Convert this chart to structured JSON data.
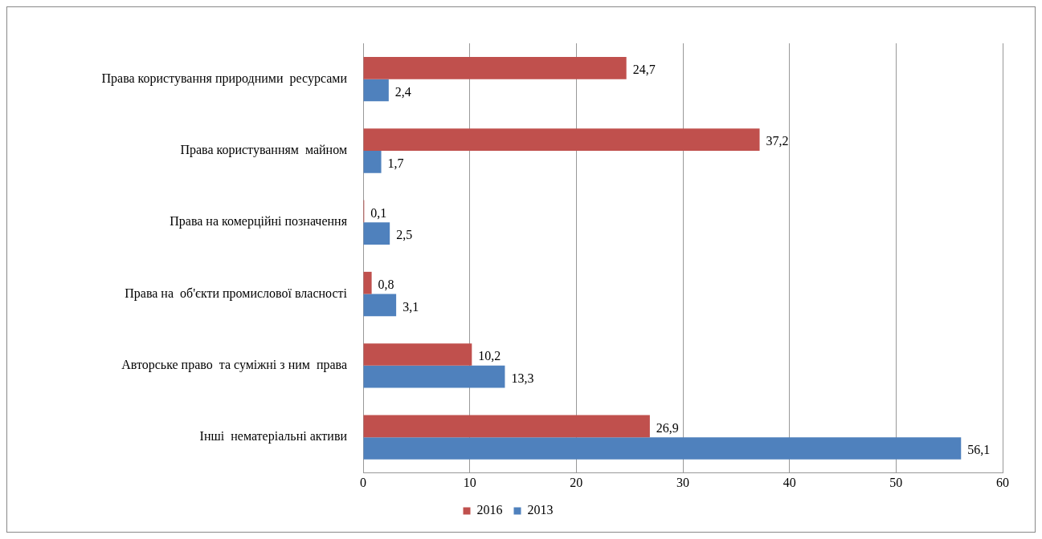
{
  "chart_data": {
    "type": "bar",
    "orientation": "horizontal",
    "categories": [
      "Права користування природними  ресурсами",
      "Права користуванням  майном",
      "Права на комерційні позначення",
      "Права на  об'єкти промислової власності",
      "Авторське право  та суміжні з ним  права",
      "Інші  нематеріальні активи"
    ],
    "series": [
      {
        "name": "2016",
        "color": "#c0504d",
        "values": [
          24.7,
          37.2,
          0.1,
          0.8,
          10.2,
          26.9
        ],
        "value_labels": [
          "24,7",
          "37,2",
          "0,1",
          "0,8",
          "10,2",
          "26,9"
        ]
      },
      {
        "name": "2013",
        "color": "#4f81bd",
        "values": [
          2.4,
          1.7,
          2.5,
          3.1,
          13.3,
          56.1
        ],
        "value_labels": [
          "2,4",
          "1,7",
          "2,5",
          "3,1",
          "13,3",
          "56,1"
        ]
      }
    ],
    "xlim": [
      0,
      60
    ],
    "xticks": [
      0,
      10,
      20,
      30,
      40,
      50,
      60
    ],
    "grid": "x",
    "legend": "bottom"
  }
}
